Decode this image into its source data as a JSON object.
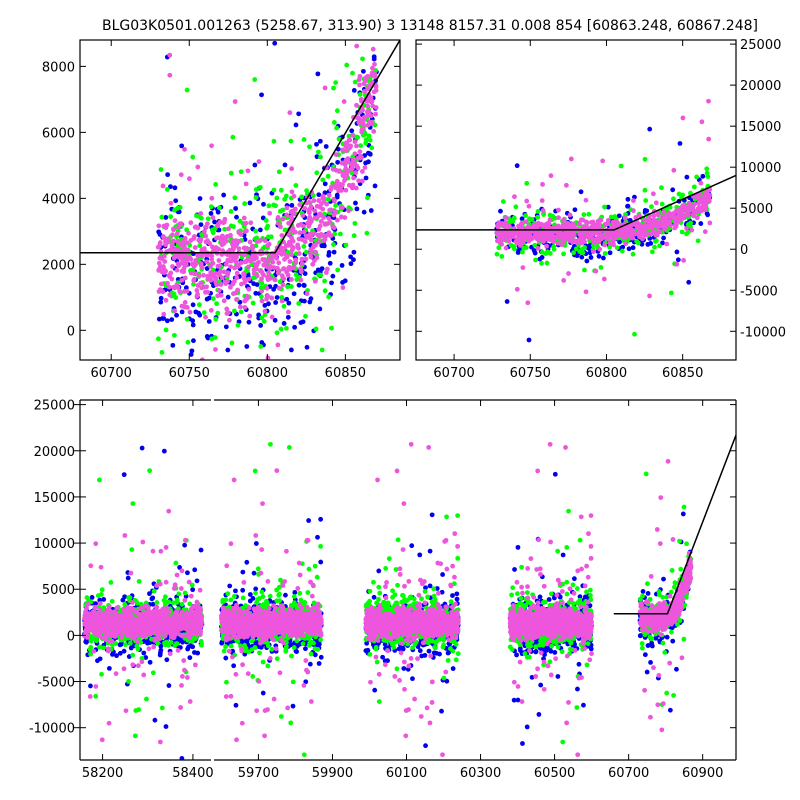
{
  "title": "BLG03K0501.001263 (5258.67, 313.90)    3 13148 8157.31 0.008 854 [60863.248, 60867.248]",
  "colors": {
    "green": "#00ff00",
    "blue": "#0000ee",
    "pink": "#ee55dd",
    "model": "#000000"
  },
  "chart_data": [
    {
      "id": "top-left",
      "type": "scatter",
      "xlim": [
        60680,
        60885
      ],
      "ylim": [
        -900,
        8800
      ],
      "xticks": [
        60700,
        60750,
        60800,
        60850
      ],
      "yticks": [
        0,
        2000,
        4000,
        6000,
        8000
      ],
      "ytick_side": "left",
      "model_line": [
        [
          60680,
          2350
        ],
        [
          60805,
          2350
        ],
        [
          60885,
          8800
        ]
      ],
      "clusters": [
        {
          "x": [
            60730,
            60870
          ],
          "y_start": [
            1800,
            2400
          ],
          "y_end": [
            4800,
            7500
          ],
          "trend_start": 60805
        }
      ]
    },
    {
      "id": "top-right",
      "type": "scatter",
      "xlim": [
        60675,
        60885
      ],
      "ylim": [
        -13500,
        25500
      ],
      "xticks": [
        60700,
        60750,
        60800,
        60850
      ],
      "yticks": [
        -10000,
        -5000,
        0,
        5000,
        10000,
        15000,
        20000,
        25000
      ],
      "ytick_side": "right",
      "model_line": [
        [
          60675,
          2350
        ],
        [
          60805,
          2350
        ],
        [
          60885,
          9000
        ]
      ],
      "clusters": [
        {
          "x": [
            60728,
            60868
          ],
          "y_start": [
            1500,
            2400
          ],
          "y_end": [
            4500,
            6500
          ],
          "trend_start": 60805
        }
      ]
    },
    {
      "id": "bottom",
      "type": "scatter",
      "broken_x_axis": true,
      "ylim": [
        -13500,
        25500
      ],
      "yticks": [
        -10000,
        -5000,
        0,
        5000,
        10000,
        15000,
        20000,
        25000
      ],
      "ytick_side": "left",
      "segments": [
        {
          "xlim": [
            58150,
            58440
          ],
          "xticks": [
            58200,
            58400
          ],
          "clusters": [
            {
              "x": [
                58160,
                58420
              ]
            }
          ]
        },
        {
          "xlim": [
            59580,
            60990
          ],
          "xticks": [
            59700,
            59900,
            60100,
            60300,
            60500,
            60700,
            60900
          ],
          "clusters": [
            {
              "x": [
                59600,
                59870
              ]
            },
            {
              "x": [
                59990,
                60240
              ]
            },
            {
              "x": [
                60380,
                60600
              ]
            },
            {
              "x": [
                60730,
                60868
              ],
              "y_start": [
                1500,
                2400
              ],
              "y_end": [
                4500,
                7500
              ],
              "trend_start": 60805
            }
          ],
          "model_line": [
            [
              60660,
              2350
            ],
            [
              60805,
              2350
            ],
            [
              60990,
              21700
            ]
          ]
        }
      ]
    }
  ]
}
